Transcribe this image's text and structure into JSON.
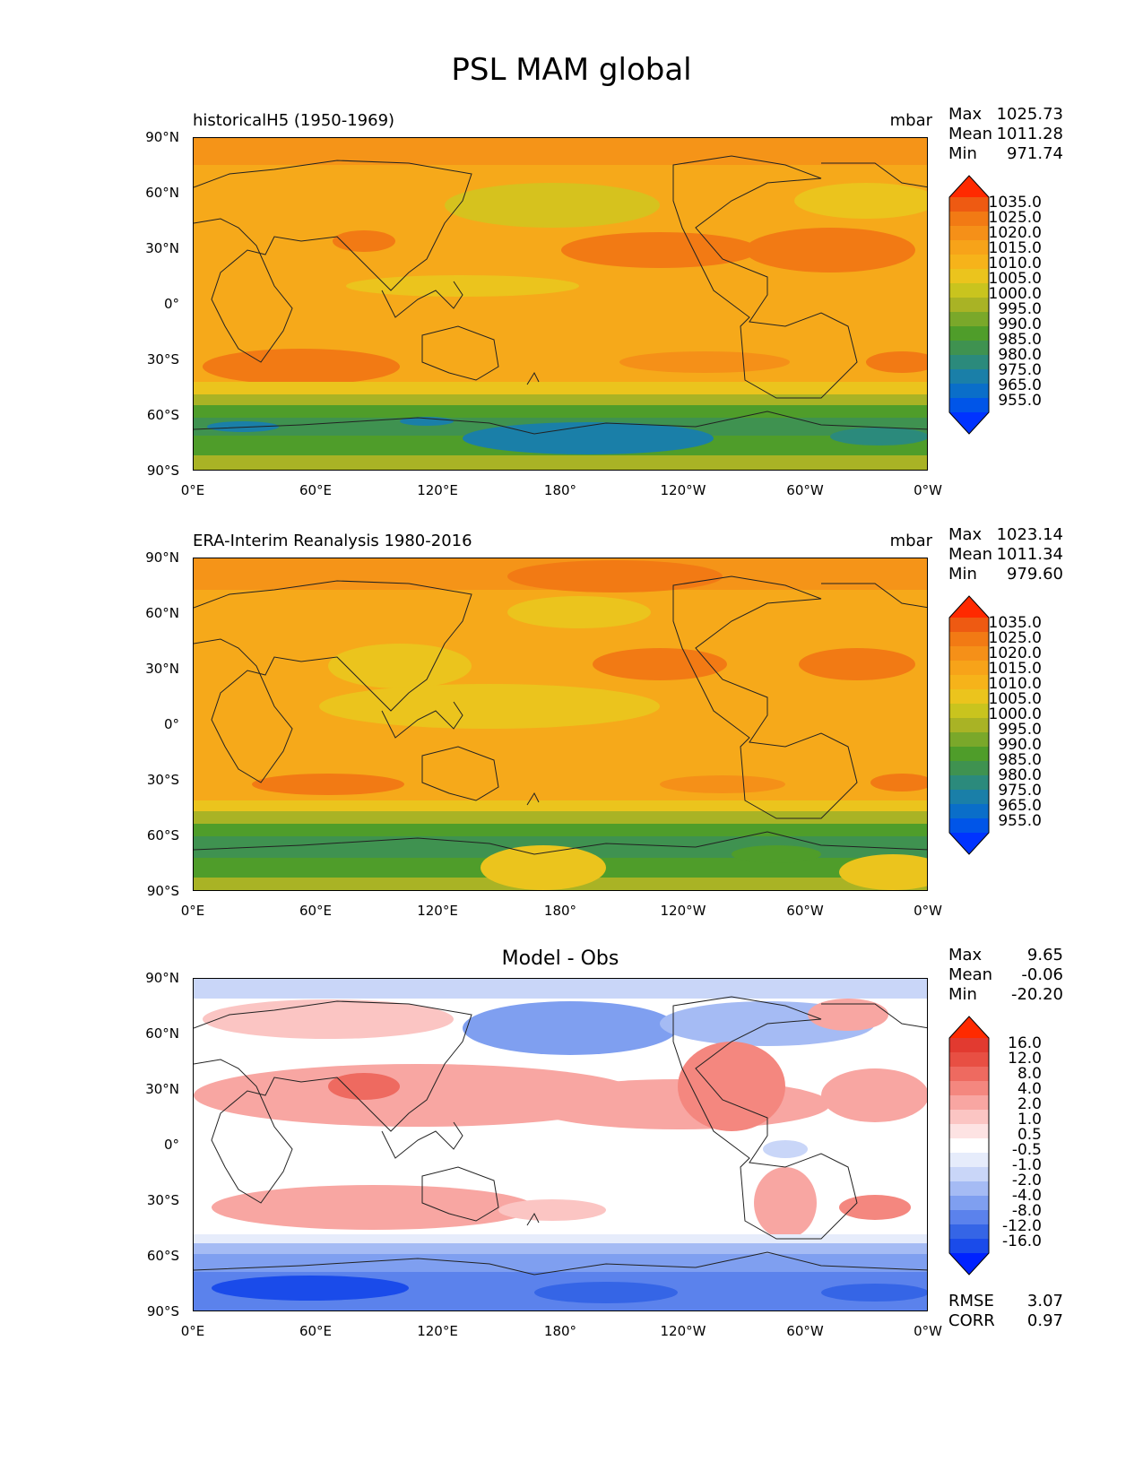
{
  "figure": {
    "title": "PSL MAM global"
  },
  "colors": {
    "psl_scale": [
      "#0033ff",
      "#0055e8",
      "#0a6ec9",
      "#1a7fa8",
      "#2b8a7c",
      "#3f9250",
      "#4f9d2a",
      "#7aa82a",
      "#a9b325",
      "#c9c41e",
      "#ebc41d",
      "#f6b31a",
      "#f7a319",
      "#f59018",
      "#f27a14",
      "#ee5a12",
      "#ff2a00"
    ],
    "diff_scale": [
      "#0022ff",
      "#1a4bea",
      "#3565e6",
      "#5b82ec",
      "#7f9ff0",
      "#a5bbf4",
      "#c9d6f8",
      "#e6ecfb",
      "#ffffff",
      "#fde3e3",
      "#fbc5c3",
      "#f8a6a2",
      "#f4877f",
      "#ee6a60",
      "#e84f43",
      "#e23a30",
      "#ff2a00"
    ],
    "coast": "#222222"
  },
  "panels": [
    {
      "id": "model",
      "title": "historicalH5 (1950-1969)",
      "units": "mbar",
      "stats": [
        {
          "label": "Max",
          "value": "1025.73"
        },
        {
          "label": "Mean",
          "value": "1011.28"
        },
        {
          "label": "Min",
          "value": "971.74"
        }
      ],
      "colorbar": [
        "1035.0",
        "1025.0",
        "1020.0",
        "1015.0",
        "1010.0",
        "1005.0",
        "1000.0",
        "995.0",
        "990.0",
        "985.0",
        "980.0",
        "975.0",
        "965.0",
        "955.0"
      ]
    },
    {
      "id": "obs",
      "title": "ERA-Interim Reanalysis 1980-2016",
      "units": "mbar",
      "stats": [
        {
          "label": "Max",
          "value": "1023.14"
        },
        {
          "label": "Mean",
          "value": "1011.34"
        },
        {
          "label": "Min",
          "value": "979.60"
        }
      ],
      "colorbar": [
        "1035.0",
        "1025.0",
        "1020.0",
        "1015.0",
        "1010.0",
        "1005.0",
        "1000.0",
        "995.0",
        "990.0",
        "985.0",
        "980.0",
        "975.0",
        "965.0",
        "955.0"
      ]
    },
    {
      "id": "diff",
      "title": "Model - Obs",
      "units": "",
      "stats": [
        {
          "label": "Max",
          "value": "9.65"
        },
        {
          "label": "Mean",
          "value": "-0.06"
        },
        {
          "label": "Min",
          "value": "-20.20"
        }
      ],
      "colorbar": [
        "16.0",
        "12.0",
        "8.0",
        "4.0",
        "2.0",
        "1.0",
        "0.5",
        "-0.5",
        "-1.0",
        "-2.0",
        "-4.0",
        "-8.0",
        "-12.0",
        "-16.0"
      ],
      "footer": [
        {
          "label": "RMSE",
          "value": "3.07"
        },
        {
          "label": "CORR",
          "value": "0.97"
        }
      ]
    }
  ],
  "axes": {
    "yticks": [
      "90°N",
      "60°N",
      "30°N",
      "0°",
      "30°S",
      "60°S",
      "90°S"
    ],
    "xticks": [
      "0°E",
      "60°E",
      "120°E",
      "180°",
      "120°W",
      "60°W",
      "0°W"
    ]
  },
  "chart_data": [
    {
      "type": "heatmap",
      "title": "historicalH5 (1950-1969)",
      "units": "mbar",
      "xlim": [
        0,
        360
      ],
      "ylim": [
        -90,
        90
      ],
      "colorbar_levels": [
        955,
        965,
        975,
        980,
        985,
        990,
        995,
        1000,
        1005,
        1010,
        1015,
        1020,
        1025,
        1035
      ],
      "stats": {
        "max": 1025.73,
        "mean": 1011.28,
        "min": 971.74
      }
    },
    {
      "type": "heatmap",
      "title": "ERA-Interim Reanalysis 1980-2016",
      "units": "mbar",
      "xlim": [
        0,
        360
      ],
      "ylim": [
        -90,
        90
      ],
      "colorbar_levels": [
        955,
        965,
        975,
        980,
        985,
        990,
        995,
        1000,
        1005,
        1010,
        1015,
        1020,
        1025,
        1035
      ],
      "stats": {
        "max": 1023.14,
        "mean": 1011.34,
        "min": 979.6
      }
    },
    {
      "type": "heatmap",
      "title": "Model - Obs",
      "xlim": [
        0,
        360
      ],
      "ylim": [
        -90,
        90
      ],
      "colorbar_levels": [
        -16,
        -12,
        -8,
        -4,
        -2,
        -1,
        -0.5,
        0.5,
        1,
        2,
        4,
        8,
        12,
        16
      ],
      "stats": {
        "max": 9.65,
        "mean": -0.06,
        "min": -20.2,
        "rmse": 3.07,
        "corr": 0.97
      }
    }
  ]
}
